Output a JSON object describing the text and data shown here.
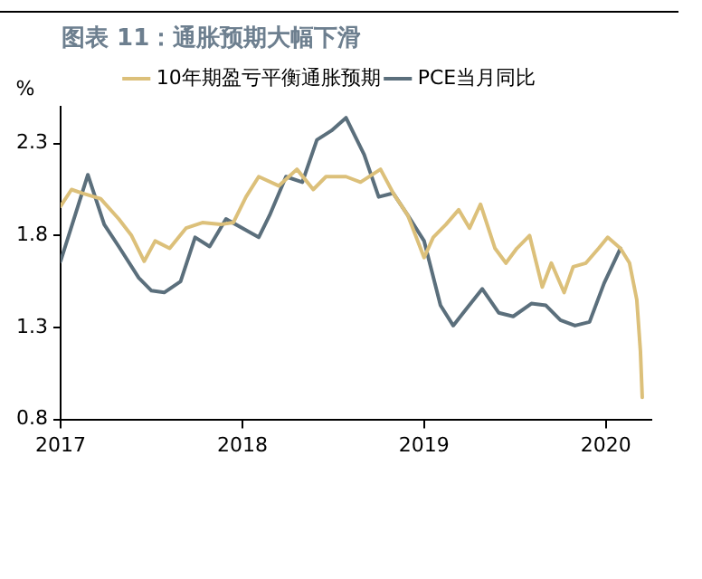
{
  "chart_data": {
    "type": "line",
    "title": "图表 11：通胀预期大幅下滑",
    "ylabel": "%",
    "xlim": [
      2017,
      2020.25
    ],
    "xticks": [
      2017,
      2018,
      2019,
      2020
    ],
    "ylim": [
      0.8,
      2.5
    ],
    "yticks": [
      0.8,
      1.3,
      1.8,
      2.3
    ],
    "grid": false,
    "legend": "top",
    "marker": "none",
    "line_style": "solid",
    "series": [
      {
        "name": "10年期盈亏平衡通胀预期",
        "color": "#dcc07a",
        "x": [
          2017.0,
          2017.06,
          2017.12,
          2017.22,
          2017.32,
          2017.39,
          2017.46,
          2017.52,
          2017.6,
          2017.69,
          2017.78,
          2017.88,
          2017.95,
          2018.02,
          2018.09,
          2018.2,
          2018.3,
          2018.39,
          2018.46,
          2018.57,
          2018.65,
          2018.76,
          2018.83,
          2018.91,
          2019.0,
          2019.05,
          2019.12,
          2019.19,
          2019.25,
          2019.31,
          2019.39,
          2019.45,
          2019.51,
          2019.58,
          2019.65,
          2019.7,
          2019.77,
          2019.82,
          2019.89,
          2019.96,
          2020.01,
          2020.08,
          2020.13,
          2020.17,
          2020.19,
          2020.2
        ],
        "values": [
          1.96,
          2.05,
          2.03,
          2.0,
          1.89,
          1.8,
          1.66,
          1.77,
          1.73,
          1.84,
          1.87,
          1.86,
          1.87,
          2.01,
          2.12,
          2.07,
          2.16,
          2.05,
          2.12,
          2.12,
          2.09,
          2.16,
          2.03,
          1.91,
          1.68,
          1.79,
          1.86,
          1.94,
          1.84,
          1.97,
          1.73,
          1.65,
          1.73,
          1.8,
          1.52,
          1.65,
          1.49,
          1.63,
          1.65,
          1.73,
          1.79,
          1.73,
          1.65,
          1.45,
          1.17,
          0.92
        ]
      },
      {
        "name": "PCE当月同比",
        "color": "#5b6f7c",
        "x": [
          2017.0,
          2017.15,
          2017.24,
          2017.32,
          2017.43,
          2017.5,
          2017.57,
          2017.66,
          2017.74,
          2017.82,
          2017.91,
          2018.09,
          2018.15,
          2018.24,
          2018.33,
          2018.41,
          2018.49,
          2018.57,
          2018.67,
          2018.75,
          2018.83,
          2018.91,
          2019.0,
          2019.09,
          2019.16,
          2019.24,
          2019.32,
          2019.41,
          2019.49,
          2019.59,
          2019.67,
          2019.75,
          2019.83,
          2019.91,
          2019.99,
          2020.08
        ],
        "values": [
          1.66,
          2.13,
          1.86,
          1.74,
          1.57,
          1.5,
          1.49,
          1.55,
          1.79,
          1.74,
          1.89,
          1.79,
          1.91,
          2.12,
          2.09,
          2.32,
          2.37,
          2.44,
          2.24,
          2.01,
          2.03,
          1.91,
          1.77,
          1.42,
          1.31,
          1.41,
          1.51,
          1.38,
          1.36,
          1.43,
          1.42,
          1.34,
          1.31,
          1.33,
          1.54,
          1.73
        ]
      }
    ]
  }
}
